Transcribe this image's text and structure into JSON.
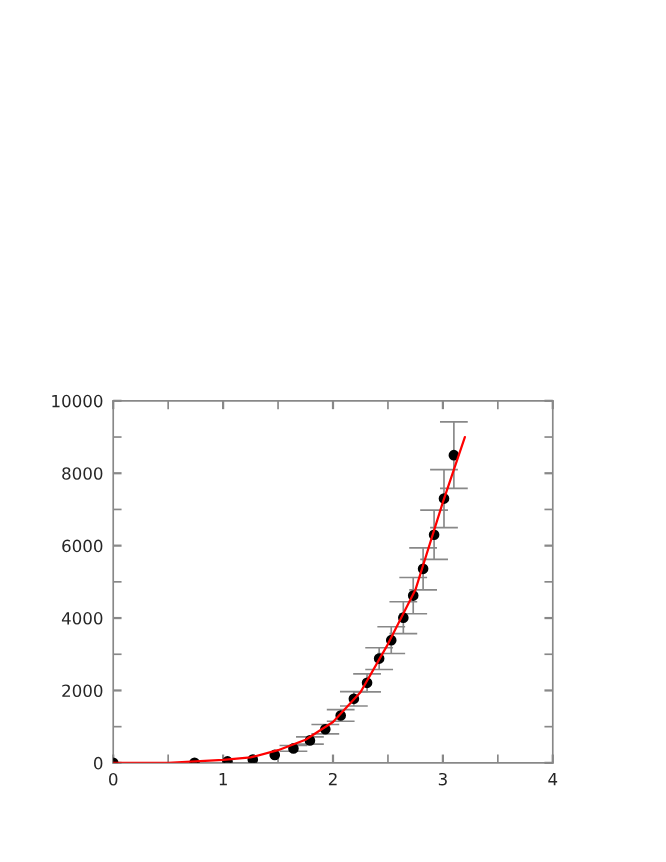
{
  "chart_data": {
    "type": "scatter",
    "series": [
      {
        "color": "#000000",
        "marker": "circle",
        "x": [
          0,
          0.74,
          1.04,
          1.27,
          1.47,
          1.64,
          1.79,
          1.93,
          2.07,
          2.19,
          2.31,
          2.42,
          2.53,
          2.64,
          2.73,
          2.82,
          2.92,
          3.01,
          3.1
        ],
        "values": [
          0,
          0,
          40,
          90,
          220,
          400,
          620,
          930,
          1310,
          1770,
          2210,
          2880,
          3390,
          4010,
          4620,
          5360,
          6300,
          7300,
          8500
        ],
        "errors": [
          null,
          null,
          null,
          null,
          null,
          80,
          100,
          130,
          160,
          200,
          250,
          300,
          370,
          440,
          500,
          580,
          680,
          800,
          920
        ]
      },
      {
        "type": "line",
        "color": "#ff0000",
        "x": [
          0,
          0.5,
          1,
          1.25,
          1.5,
          1.75,
          2,
          2.25,
          2.5,
          2.75,
          3,
          3.2
        ],
        "values": [
          0,
          0,
          80,
          150,
          350,
          640,
          1130,
          1950,
          3280,
          4780,
          7200,
          9000
        ]
      }
    ],
    "xlim": [
      0,
      4
    ],
    "xticks": [
      0,
      1,
      2,
      3,
      4
    ],
    "ylim": [
      0,
      10000
    ],
    "yticks": [
      0,
      2000,
      4000,
      6000,
      8000,
      10000
    ],
    "grid": false
  }
}
